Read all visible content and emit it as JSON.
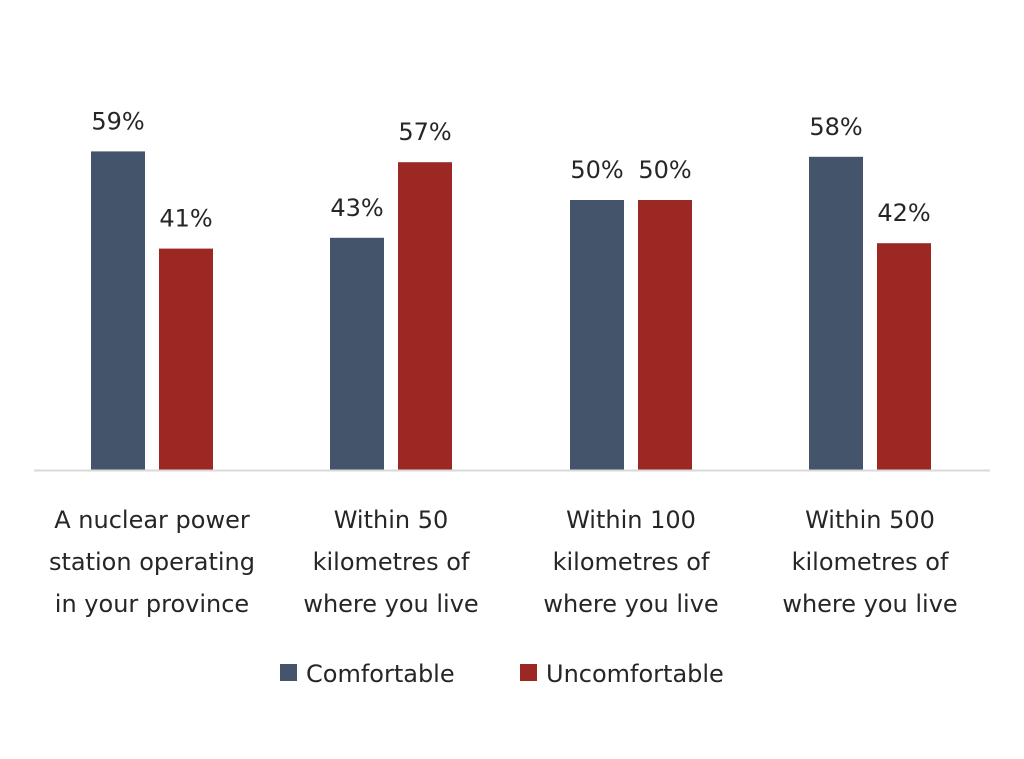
{
  "chart_data": {
    "type": "bar",
    "title": "",
    "xlabel": "",
    "ylabel": "",
    "ylim": [
      0,
      60
    ],
    "grid": false,
    "legend_position": "bottom",
    "value_suffix": "%",
    "categories": [
      [
        "A nuclear power",
        "station operating",
        "in your province"
      ],
      [
        "Within 50",
        "kilometres of",
        "where you live"
      ],
      [
        "Within 100",
        "kilometres of",
        "where you live"
      ],
      [
        "Within 500",
        "kilometres of",
        "where you live"
      ]
    ],
    "series": [
      {
        "name": "Comfortable",
        "color": "#44546a",
        "values": [
          59,
          43,
          50,
          58
        ]
      },
      {
        "name": "Uncomfortable",
        "color": "#9b2823",
        "values": [
          41,
          57,
          50,
          42
        ]
      }
    ],
    "axis_color": "#d9d9d9"
  }
}
